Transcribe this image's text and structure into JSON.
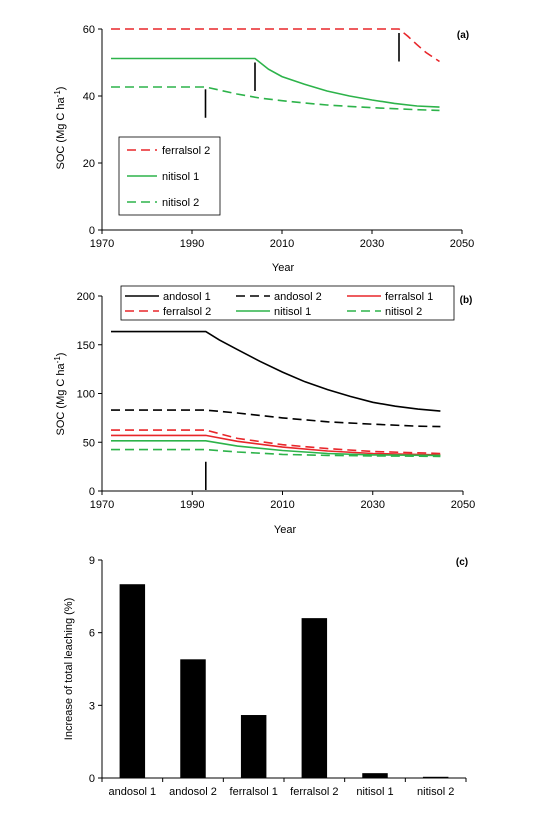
{
  "chart_data": [
    {
      "type": "line",
      "panel_label": "(a)",
      "xlabel": "Year",
      "ylabel": "SOC (Mg C ha",
      "ylabel_sup": "-1",
      "ylabel_close": ")",
      "xlim": [
        1970,
        2050
      ],
      "ylim": [
        0,
        60
      ],
      "xticks": [
        1970,
        1990,
        2010,
        2030,
        2050
      ],
      "yticks": [
        0,
        20,
        40,
        60
      ],
      "legend_position": "bottom-left",
      "series": [
        {
          "name": "ferralsol 2",
          "color": "#e8262a",
          "dash": "dashed",
          "x": [
            1972,
            2036,
            2038,
            2040,
            2042,
            2044,
            2045
          ],
          "y": [
            60,
            60,
            57.8,
            55.3,
            53.0,
            51.2,
            50.3
          ]
        },
        {
          "name": "nitisol 1",
          "color": "#2db34a",
          "dash": "solid",
          "x": [
            1972,
            2004,
            2007,
            2010,
            2015,
            2020,
            2025,
            2030,
            2035,
            2040,
            2045
          ],
          "y": [
            51.2,
            51.2,
            48.0,
            45.8,
            43.5,
            41.5,
            40.0,
            38.8,
            37.8,
            37.0,
            36.7
          ]
        },
        {
          "name": "nitisol 2",
          "color": "#2db34a",
          "dash": "dashed",
          "x": [
            1972,
            1993,
            1996,
            2000,
            2005,
            2010,
            2015,
            2020,
            2025,
            2030,
            2035,
            2040,
            2045
          ],
          "y": [
            42.7,
            42.7,
            41.8,
            40.6,
            39.4,
            38.6,
            37.9,
            37.3,
            36.9,
            36.5,
            36.2,
            35.9,
            35.7
          ]
        }
      ],
      "markers": [
        {
          "x": 1993,
          "y_top": 42,
          "y_bottom": 33.5
        },
        {
          "x": 2004,
          "y_top": 50,
          "y_bottom": 41.5
        },
        {
          "x": 2036,
          "y_top": 58.8,
          "y_bottom": 50.3
        }
      ]
    },
    {
      "type": "line",
      "panel_label": "(b)",
      "xlabel": "Year",
      "ylabel": "SOC (Mg C ha",
      "ylabel_sup": "-1",
      "ylabel_close": ")",
      "xlim": [
        1970,
        2050
      ],
      "ylim": [
        0,
        200
      ],
      "xticks": [
        1970,
        1990,
        2010,
        2030,
        2050
      ],
      "yticks": [
        0,
        50,
        100,
        150,
        200
      ],
      "legend_position": "top",
      "series": [
        {
          "name": "andosol 1",
          "color": "#000000",
          "dash": "solid",
          "x": [
            1972,
            1993,
            1996,
            2000,
            2005,
            2010,
            2015,
            2020,
            2025,
            2030,
            2035,
            2040,
            2045
          ],
          "y": [
            163.5,
            163.5,
            155,
            145,
            133,
            122,
            112,
            104,
            97,
            91,
            87,
            84,
            82
          ]
        },
        {
          "name": "andosol 2",
          "color": "#000000",
          "dash": "dashed",
          "x": [
            1972,
            1993,
            2000,
            2010,
            2020,
            2030,
            2040,
            2045
          ],
          "y": [
            83,
            83,
            80,
            75,
            71,
            68.5,
            66.5,
            66
          ]
        },
        {
          "name": "ferralsol 1",
          "color": "#e8262a",
          "dash": "solid",
          "x": [
            1972,
            1993,
            2000,
            2010,
            2020,
            2030,
            2045
          ],
          "y": [
            57,
            57,
            51,
            45,
            41,
            38.5,
            37
          ]
        },
        {
          "name": "ferralsol 2",
          "color": "#e8262a",
          "dash": "dashed",
          "x": [
            1972,
            1993,
            2000,
            2010,
            2020,
            2030,
            2045
          ],
          "y": [
            62.5,
            62.5,
            54,
            47.5,
            43.5,
            40.5,
            38.5
          ]
        },
        {
          "name": "nitisol 1",
          "color": "#2db34a",
          "dash": "solid",
          "x": [
            1972,
            1993,
            2000,
            2010,
            2020,
            2030,
            2045
          ],
          "y": [
            51.5,
            51.5,
            46,
            41.5,
            38.5,
            37,
            36.5
          ]
        },
        {
          "name": "nitisol 2",
          "color": "#2db34a",
          "dash": "dashed",
          "x": [
            1972,
            1993,
            2000,
            2010,
            2020,
            2030,
            2045
          ],
          "y": [
            42.5,
            42.5,
            40,
            37.5,
            36.5,
            36,
            35.5
          ]
        }
      ],
      "markers": [
        {
          "x": 1993,
          "y_top": 30,
          "y_bottom": 1
        }
      ]
    },
    {
      "type": "bar",
      "panel_label": "(c)",
      "xlabel": "",
      "ylabel": "Increase of total leaching (%)",
      "ylim": [
        0,
        9
      ],
      "yticks": [
        0,
        3,
        6,
        9
      ],
      "categories": [
        "andosol 1",
        "andosol 2",
        "ferralsol 1",
        "ferralsol 2",
        "nitisol 1",
        "nitisol 2"
      ],
      "values": [
        8.0,
        4.9,
        2.6,
        6.6,
        0.2,
        0.05
      ],
      "color": "#000000"
    }
  ]
}
